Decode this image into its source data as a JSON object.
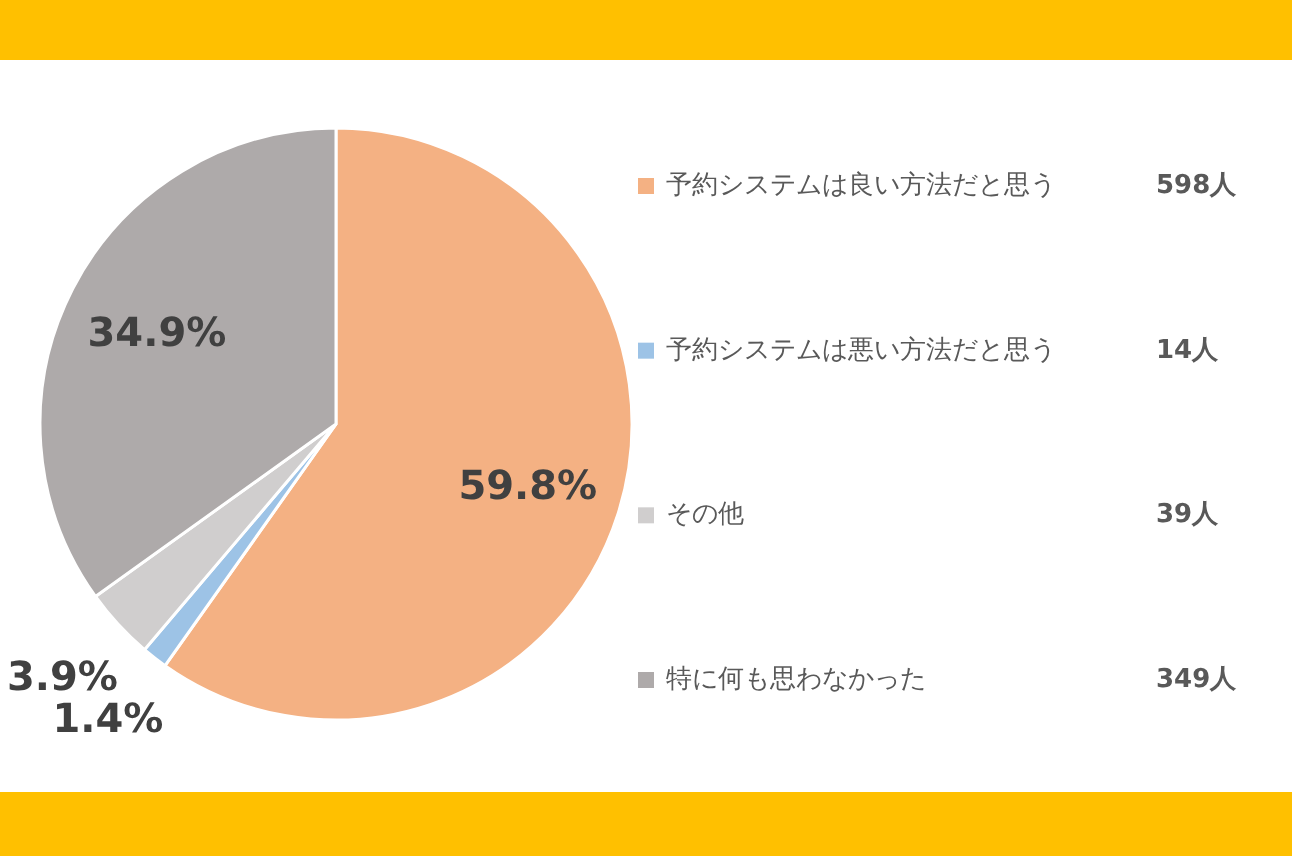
{
  "chart_data": {
    "type": "pie",
    "categories": [
      "予約システムは良い方法だと思う",
      "予約システムは悪い方法だと思う",
      "その他",
      "特に何も思わなかった"
    ],
    "values": [
      59.8,
      1.4,
      3.9,
      34.9
    ],
    "value_labels": [
      "59.8%",
      "1.4%",
      "3.9%",
      "34.9%"
    ],
    "colors": [
      "#f4b183",
      "#9dc3e6",
      "#d0cece",
      "#aeaaaa"
    ],
    "annotations": [
      "598人",
      "14人",
      "39人",
      "349人"
    ],
    "legend": "right"
  }
}
